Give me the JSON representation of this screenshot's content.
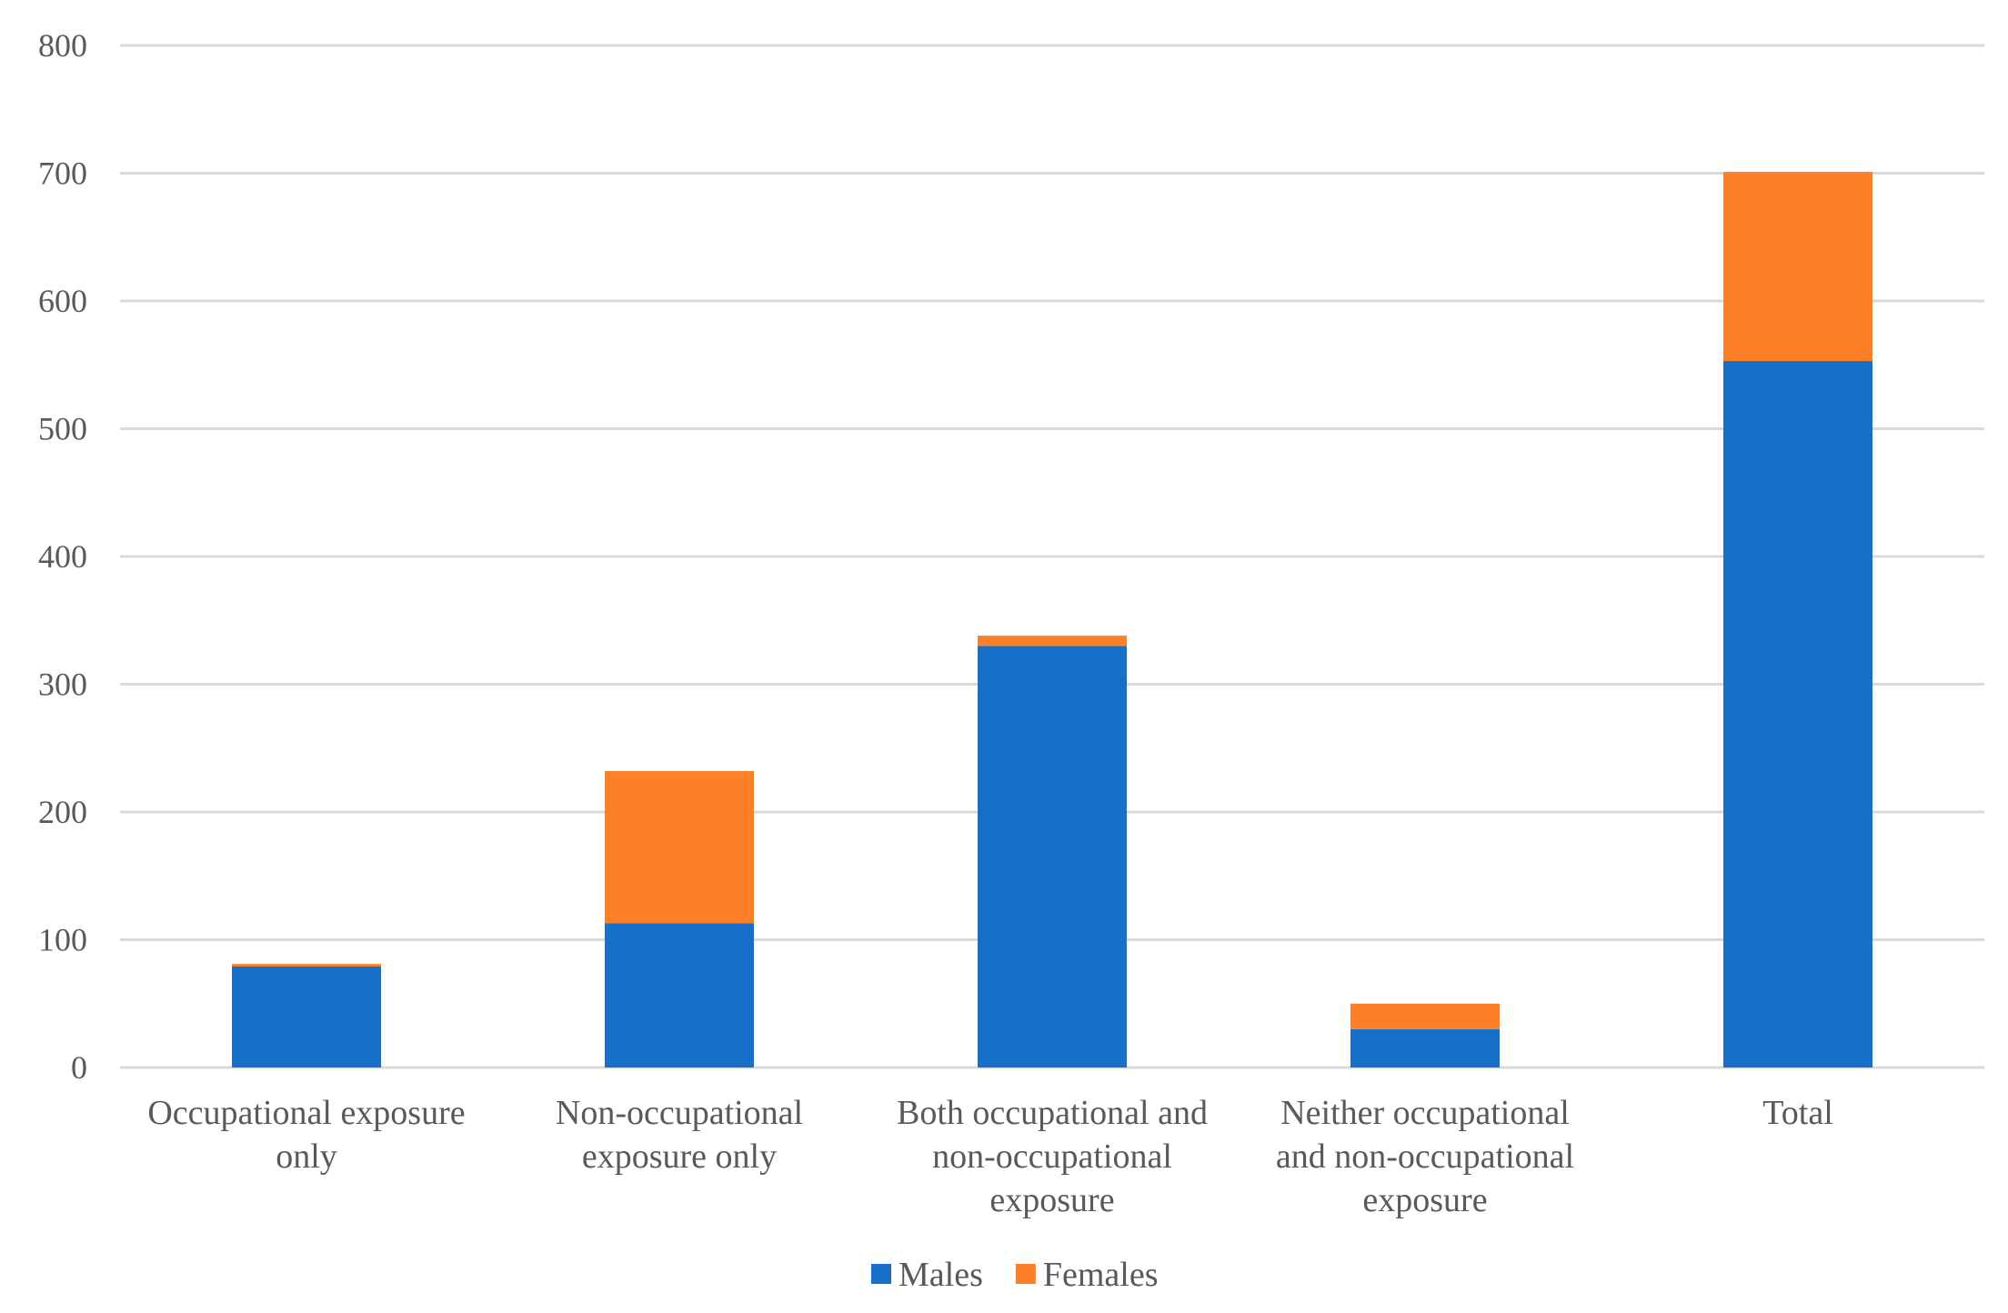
{
  "chart_data": {
    "type": "bar",
    "stacked": true,
    "title": "",
    "xlabel": "",
    "ylabel": "",
    "ylim": [
      0,
      800
    ],
    "yticks": [
      0,
      100,
      200,
      300,
      400,
      500,
      600,
      700,
      800
    ],
    "grid": true,
    "legend_position": "bottom",
    "categories": [
      [
        "Occupational exposure",
        "only"
      ],
      [
        "Non-occupational",
        "exposure only"
      ],
      [
        "Both occupational and",
        "non-occupational",
        "exposure"
      ],
      [
        "Neither occupational",
        "and non-occupational",
        "exposure"
      ],
      [
        "Total"
      ]
    ],
    "series": [
      {
        "name": "Males",
        "color": "#1670c7",
        "values": [
          79,
          113,
          330,
          30,
          553
        ]
      },
      {
        "name": "Females",
        "color": "#fd8027",
        "values": [
          2,
          119,
          8,
          20,
          148
        ]
      }
    ]
  }
}
